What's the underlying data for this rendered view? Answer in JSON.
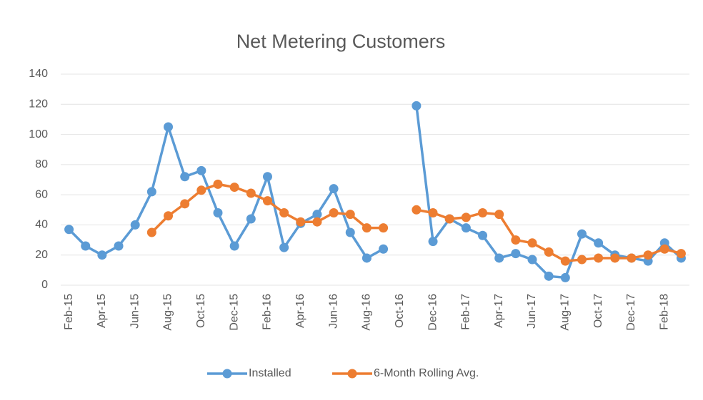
{
  "chart_data": {
    "type": "line",
    "title": "Net Metering Customers",
    "categories": [
      "Feb-15",
      null,
      "Apr-15",
      null,
      "Jun-15",
      null,
      "Aug-15",
      null,
      "Oct-15",
      null,
      "Dec-15",
      null,
      "Feb-16",
      null,
      "Apr-16",
      null,
      "Jun-16",
      null,
      "Aug-16",
      null,
      "Oct-16",
      null,
      "Dec-16",
      null,
      "Feb-17",
      null,
      "Apr-17",
      null,
      "Jun-17",
      null,
      "Aug-17",
      null,
      "Oct-17",
      null,
      "Dec-17",
      null,
      "Feb-18",
      null
    ],
    "series": [
      {
        "name": "Installed",
        "color": "#5b9bd5",
        "values": [
          37,
          26,
          20,
          26,
          40,
          62,
          105,
          72,
          76,
          48,
          26,
          44,
          72,
          25,
          41,
          47,
          64,
          35,
          18,
          24,
          null,
          119,
          29,
          44,
          38,
          33,
          18,
          21,
          17,
          6,
          5,
          34,
          28,
          20,
          18,
          16,
          28,
          18
        ]
      },
      {
        "name": "6-Month Rolling Avg.",
        "color": "#ed7d31",
        "values": [
          null,
          null,
          null,
          null,
          null,
          35,
          46,
          54,
          63,
          67,
          65,
          61,
          56,
          48,
          42,
          42,
          48,
          47,
          38,
          38,
          null,
          50,
          48,
          44,
          45,
          48,
          47,
          30,
          28,
          22,
          16,
          17,
          18,
          18,
          18,
          20,
          24,
          21
        ]
      }
    ],
    "ylim": [
      0,
      140
    ],
    "yticks": [
      0,
      20,
      40,
      60,
      80,
      100,
      120,
      140
    ],
    "grid": true
  }
}
